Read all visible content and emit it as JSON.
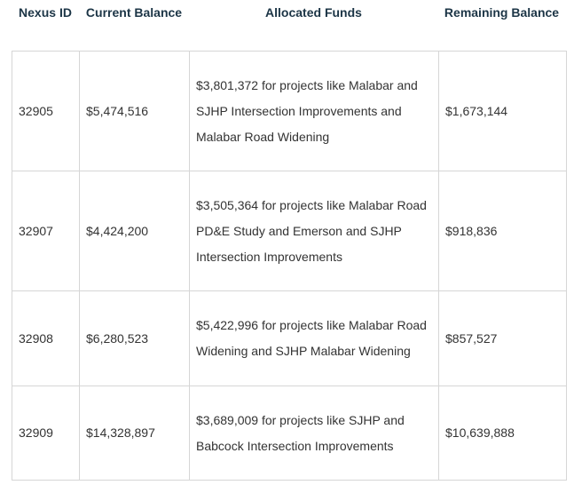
{
  "table": {
    "header": [
      "Nexus ID",
      "Current Balance",
      "Allocated Funds",
      "Remaining Balance"
    ],
    "rows": [
      [
        "32905",
        "$5,474,516",
        "$3,801,372 for projects like Malabar and SJHP Intersection Improvements and Malabar Road Widening",
        "$1,673,144"
      ],
      [
        "32907",
        "$4,424,200",
        "$3,505,364 for projects like Malabar Road PD&E Study and Emerson and SJHP Intersection Improvements",
        "$918,836"
      ],
      [
        "32908",
        "$6,280,523",
        "$5,422,996 for projects like Malabar Road Widening and SJHP Malabar Widening",
        "$857,527"
      ],
      [
        "32909",
        "$14,328,897",
        "$3,689,009 for projects like SJHP and Babcock Intersection Improvements",
        "$10,639,888"
      ]
    ]
  }
}
